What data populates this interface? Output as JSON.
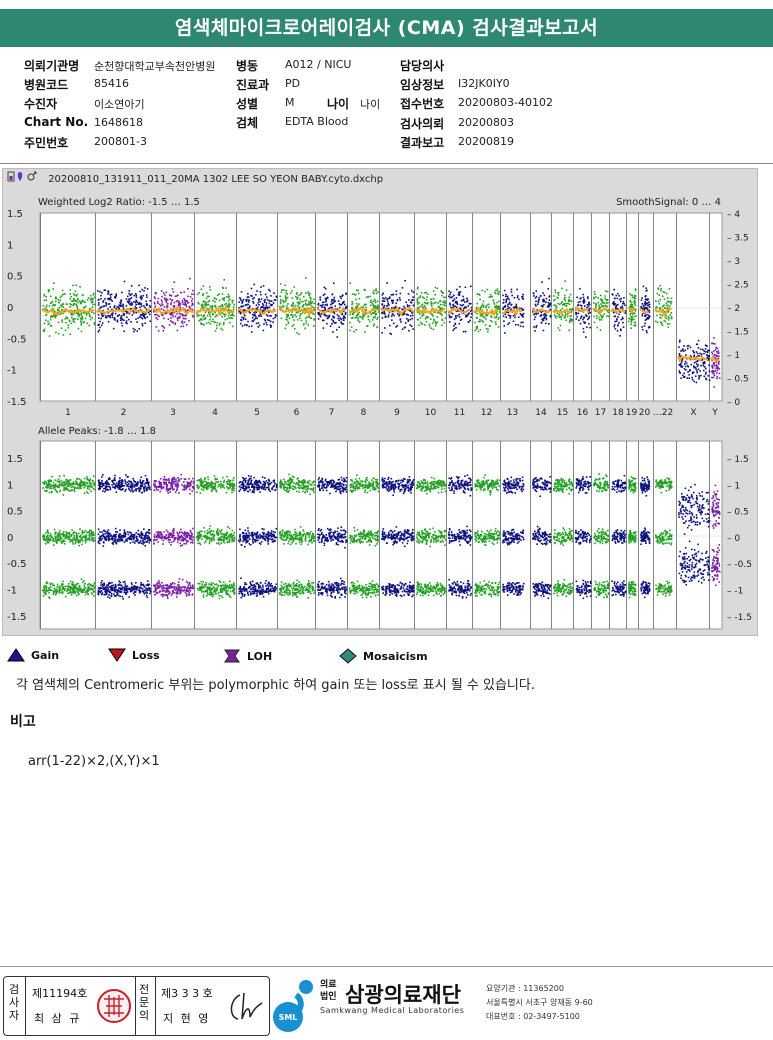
{
  "title": "염색체마이크로어레이검사 (CMA) 검사결과보고서",
  "info": {
    "institution_label": "의뢰기관명",
    "institution": "순천향대학교부속천안병원",
    "ward_label": "병동",
    "ward": "A012 / NICU",
    "doctor_label": "담당의사",
    "doctor": "",
    "hospital_code_label": "병원코드",
    "hospital_code": "85416",
    "dept_label": "진료과",
    "dept": "PD",
    "clinical_label": "임상정보",
    "clinical": "I32JK0IY0",
    "patient_label": "수진자",
    "patient": "이소연아기",
    "sex_label": "성별",
    "sex": "M",
    "age_label": "나이",
    "age": "나이",
    "receipt_label": "접수번호",
    "receipt": "20200803-40102",
    "chart_label": "Chart No.",
    "chart": "1648618",
    "specimen_label": "검체",
    "specimen": "EDTA Blood",
    "request_label": "검사의뢰",
    "request": "20200803",
    "id_label": "주민번호",
    "id": "200801-3",
    "report_label": "결과보고",
    "report": "20200819"
  },
  "figure": {
    "filename": "20200810_131911_011_20MA 1302 LEE SO YEON BABY.cyto.dxchp",
    "panel1_label": "Weighted Log2 Ratio: -1.5 … 1.5",
    "panel1_right_label": "SmoothSignal: 0 … 4",
    "panel2_label": "Allele Peaks: -1.8 … 1.8",
    "chromosomes": [
      "1",
      "2",
      "3",
      "4",
      "5",
      "6",
      "7",
      "8",
      "9",
      "10",
      "11",
      "12",
      "13",
      "14",
      "15",
      "16",
      "17",
      "18",
      "19",
      "20",
      "…22",
      "X",
      "Y"
    ],
    "left_ticks_1": [
      "1.5",
      "1",
      "0.5",
      "0",
      "-0.5",
      "-1",
      "-1.5"
    ],
    "right_ticks_1": [
      "4",
      "3.5",
      "3",
      "2.5",
      "2",
      "1.5",
      "1",
      "0.5",
      "0"
    ],
    "ticks_2": [
      "1.5",
      "1",
      "0.5",
      "0",
      "-0.5",
      "-1",
      "-1.5"
    ],
    "colors": {
      "green": "#22a022",
      "navy": "#0b0f7e",
      "purple": "#7a1ea6",
      "orange": "#f5a41c"
    }
  },
  "legend": {
    "gain": "Gain",
    "loss": "Loss",
    "loh": "LOH",
    "mosaicism": "Mosaicism"
  },
  "note": "각 염색체의 Centromeric 부위는 polymorphic 하여 gain 또는 loss로 표시 될 수 있습니다.",
  "remarks_title": "비고",
  "result": "arr(1-22)×2,(X,Y)×1",
  "footer": {
    "exam_label": "검사자",
    "exam_no": "제11194호",
    "exam_name": "최 삼 규",
    "spec_label": "전문의",
    "spec_no": "제3 3 3 호",
    "spec_name": "지 현 영",
    "org_prefix": "의료법인",
    "org_name": "삼광의료재단",
    "org_sub": "Samkwang Medical Laboratories",
    "sml": "SML",
    "contact1": "요양기관 : 11365200",
    "contact2": "서울특별시 서초구 양재동 9-60",
    "contact3": "대표번호 : 02-3497-5100"
  }
}
